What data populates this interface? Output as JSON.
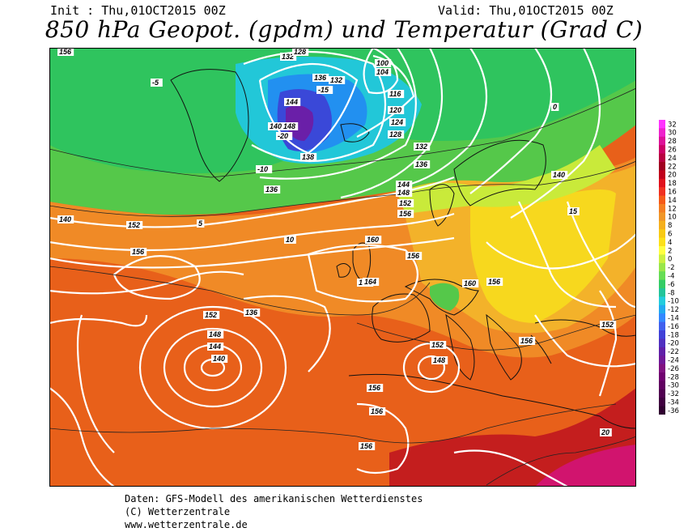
{
  "header": {
    "init": "Init : Thu,01OCT2015 00Z",
    "valid": "Valid: Thu,01OCT2015 00Z",
    "title": "850 hPa Geopot. (gpdm) und Temperatur (Grad C)"
  },
  "footer": {
    "line1": "Daten: GFS-Modell des amerikanischen Wetterdienstes",
    "line2": "(C) Wetterzentrale",
    "line3": "www.wetterzentrale.de"
  },
  "legend": {
    "values": [
      "32",
      "30",
      "28",
      "26",
      "24",
      "22",
      "20",
      "18",
      "16",
      "14",
      "12",
      "10",
      "8",
      "6",
      "4",
      "2",
      "0",
      "-2",
      "-4",
      "-6",
      "-8",
      "-10",
      "-12",
      "-14",
      "-16",
      "-18",
      "-20",
      "-22",
      "-24",
      "-26",
      "-28",
      "-30",
      "-32",
      "-34",
      "-36"
    ],
    "colors": [
      "#ff33ff",
      "#ee22cc",
      "#dd1199",
      "#cc0066",
      "#b80040",
      "#a00020",
      "#c0001c",
      "#e0101c",
      "#f03020",
      "#f55a18",
      "#f47e22",
      "#f09628",
      "#f5b01e",
      "#f8ca14",
      "#fce018",
      "#ffff40",
      "#ccf040",
      "#99e64a",
      "#66dd55",
      "#33cc66",
      "#22c49a",
      "#22ccdd",
      "#22aaf0",
      "#3388ff",
      "#4060ee",
      "#4040d8",
      "#5030c0",
      "#6020a8",
      "#701898",
      "#801080",
      "#700070",
      "#600060",
      "#500050",
      "#400040",
      "#300030"
    ]
  },
  "map_labels": {
    "geopotential": [
      "156",
      "132",
      "128",
      "136",
      "132",
      "140",
      "144",
      "148",
      "100",
      "104",
      "116",
      "120",
      "124",
      "128",
      "132",
      "136",
      "140",
      "152",
      "156",
      "160",
      "164",
      "144",
      "148",
      "152",
      "156",
      "136",
      "138",
      "160",
      "156",
      "152",
      "148",
      "144",
      "140",
      "148",
      "156",
      "156",
      "156",
      "152",
      "164",
      "156",
      "152",
      "156",
      "140",
      "136"
    ],
    "temperature": [
      "0",
      "-5",
      "-10",
      "-15",
      "-20",
      "5",
      "10",
      "15",
      "20"
    ]
  }
}
